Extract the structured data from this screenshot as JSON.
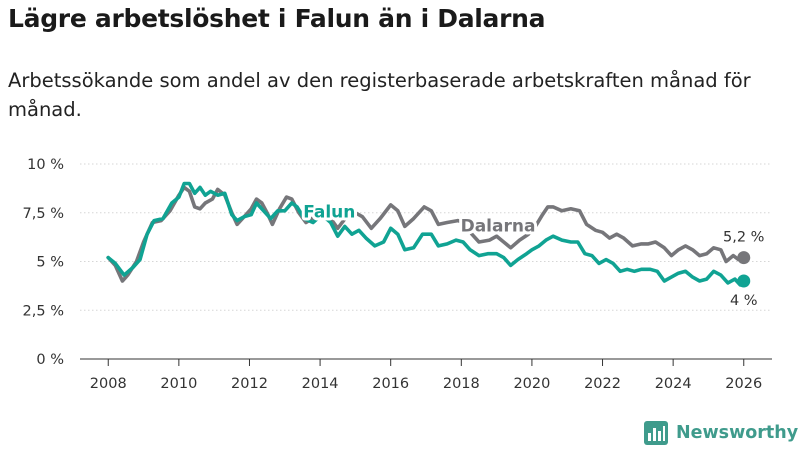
{
  "header": {
    "title": "Lägre arbetslöshet i Falun än i Dalarna",
    "subtitle": "Arbetssökande som andel av den registerbaserade arbetskraften månad för månad."
  },
  "brand": {
    "name": "Newsworthy",
    "icon": "bar-chart-logo-icon",
    "color": "#3f9b8c"
  },
  "chart_data": {
    "type": "line",
    "xlim": [
      2007.2,
      2026.8
    ],
    "ylim": [
      0,
      10
    ],
    "x_ticks": [
      {
        "value": 2008,
        "label": "2008"
      },
      {
        "value": 2010,
        "label": "2010"
      },
      {
        "value": 2012,
        "label": "2012"
      },
      {
        "value": 2014,
        "label": "2014"
      },
      {
        "value": 2016,
        "label": "2016"
      },
      {
        "value": 2018,
        "label": "2018"
      },
      {
        "value": 2020,
        "label": "2020"
      },
      {
        "value": 2022,
        "label": "2022"
      },
      {
        "value": 2024,
        "label": "2024"
      },
      {
        "value": 2026,
        "label": "2026"
      }
    ],
    "y_ticks": [
      {
        "value": 0,
        "label": "0 %"
      },
      {
        "value": 2.5,
        "label": "2,5 %"
      },
      {
        "value": 5,
        "label": "5 %"
      },
      {
        "value": 7.5,
        "label": "7,5 %"
      },
      {
        "value": 10,
        "label": "10 %"
      }
    ],
    "grid": "horizontal",
    "series": [
      {
        "name": "Dalarna",
        "color": "#76767a",
        "end_label": "5,2 %",
        "points": [
          [
            2008.0,
            5.2
          ],
          [
            2008.2,
            4.8
          ],
          [
            2008.4,
            4.0
          ],
          [
            2008.55,
            4.3
          ],
          [
            2008.8,
            5.0
          ],
          [
            2009.0,
            6.0
          ],
          [
            2009.25,
            7.0
          ],
          [
            2009.5,
            7.1
          ],
          [
            2009.75,
            7.6
          ],
          [
            2010.0,
            8.4
          ],
          [
            2010.15,
            8.8
          ],
          [
            2010.3,
            8.6
          ],
          [
            2010.45,
            7.8
          ],
          [
            2010.6,
            7.7
          ],
          [
            2010.75,
            8.0
          ],
          [
            2010.95,
            8.2
          ],
          [
            2011.1,
            8.7
          ],
          [
            2011.3,
            8.4
          ],
          [
            2011.5,
            7.5
          ],
          [
            2011.65,
            6.9
          ],
          [
            2011.85,
            7.3
          ],
          [
            2012.05,
            7.7
          ],
          [
            2012.2,
            8.2
          ],
          [
            2012.35,
            8.0
          ],
          [
            2012.5,
            7.5
          ],
          [
            2012.65,
            6.9
          ],
          [
            2012.85,
            7.7
          ],
          [
            2013.05,
            8.3
          ],
          [
            2013.2,
            8.2
          ],
          [
            2013.4,
            7.5
          ],
          [
            2013.6,
            7.0
          ],
          [
            2013.85,
            7.3
          ],
          [
            2014.1,
            7.7
          ],
          [
            2014.3,
            7.2
          ],
          [
            2014.5,
            6.7
          ],
          [
            2014.75,
            7.3
          ],
          [
            2015.0,
            7.5
          ],
          [
            2015.2,
            7.3
          ],
          [
            2015.45,
            6.7
          ],
          [
            2015.7,
            7.2
          ],
          [
            2016.0,
            7.9
          ],
          [
            2016.2,
            7.6
          ],
          [
            2016.4,
            6.8
          ],
          [
            2016.65,
            7.2
          ],
          [
            2016.95,
            7.8
          ],
          [
            2017.15,
            7.6
          ],
          [
            2017.35,
            6.9
          ],
          [
            2017.6,
            7.0
          ],
          [
            2017.9,
            7.1
          ],
          [
            2018.1,
            7.0
          ],
          [
            2018.3,
            6.4
          ],
          [
            2018.5,
            6.0
          ],
          [
            2018.8,
            6.1
          ],
          [
            2019.0,
            6.3
          ],
          [
            2019.2,
            6.0
          ],
          [
            2019.4,
            5.7
          ],
          [
            2019.65,
            6.1
          ],
          [
            2019.9,
            6.4
          ],
          [
            2020.1,
            6.8
          ],
          [
            2020.3,
            7.4
          ],
          [
            2020.45,
            7.8
          ],
          [
            2020.6,
            7.8
          ],
          [
            2020.85,
            7.6
          ],
          [
            2021.1,
            7.7
          ],
          [
            2021.35,
            7.6
          ],
          [
            2021.55,
            6.9
          ],
          [
            2021.8,
            6.6
          ],
          [
            2022.0,
            6.5
          ],
          [
            2022.2,
            6.2
          ],
          [
            2022.4,
            6.4
          ],
          [
            2022.6,
            6.2
          ],
          [
            2022.85,
            5.8
          ],
          [
            2023.1,
            5.9
          ],
          [
            2023.3,
            5.9
          ],
          [
            2023.5,
            6.0
          ],
          [
            2023.75,
            5.7
          ],
          [
            2023.95,
            5.3
          ],
          [
            2024.15,
            5.6
          ],
          [
            2024.35,
            5.8
          ],
          [
            2024.55,
            5.6
          ],
          [
            2024.75,
            5.3
          ],
          [
            2024.95,
            5.4
          ],
          [
            2025.15,
            5.7
          ],
          [
            2025.35,
            5.6
          ],
          [
            2025.5,
            5.0
          ],
          [
            2025.7,
            5.3
          ],
          [
            2025.85,
            5.1
          ],
          [
            2026.0,
            5.2
          ]
        ]
      },
      {
        "name": "Falun",
        "color": "#10a393",
        "end_label": "4 %",
        "points": [
          [
            2008.0,
            5.2
          ],
          [
            2008.2,
            4.9
          ],
          [
            2008.45,
            4.3
          ],
          [
            2008.7,
            4.7
          ],
          [
            2008.9,
            5.1
          ],
          [
            2009.1,
            6.4
          ],
          [
            2009.3,
            7.1
          ],
          [
            2009.55,
            7.2
          ],
          [
            2009.8,
            8.0
          ],
          [
            2010.0,
            8.3
          ],
          [
            2010.15,
            9.0
          ],
          [
            2010.3,
            9.0
          ],
          [
            2010.45,
            8.5
          ],
          [
            2010.6,
            8.8
          ],
          [
            2010.75,
            8.4
          ],
          [
            2010.9,
            8.6
          ],
          [
            2011.1,
            8.4
          ],
          [
            2011.3,
            8.5
          ],
          [
            2011.5,
            7.4
          ],
          [
            2011.65,
            7.1
          ],
          [
            2011.85,
            7.3
          ],
          [
            2012.05,
            7.4
          ],
          [
            2012.2,
            8.0
          ],
          [
            2012.4,
            7.6
          ],
          [
            2012.6,
            7.2
          ],
          [
            2012.8,
            7.6
          ],
          [
            2013.0,
            7.6
          ],
          [
            2013.2,
            8.0
          ],
          [
            2013.35,
            7.8
          ],
          [
            2013.55,
            7.2
          ],
          [
            2013.8,
            7.0
          ],
          [
            2014.05,
            7.4
          ],
          [
            2014.3,
            7.0
          ],
          [
            2014.5,
            6.3
          ],
          [
            2014.7,
            6.8
          ],
          [
            2014.9,
            6.4
          ],
          [
            2015.1,
            6.6
          ],
          [
            2015.3,
            6.2
          ],
          [
            2015.55,
            5.8
          ],
          [
            2015.8,
            6.0
          ],
          [
            2016.0,
            6.7
          ],
          [
            2016.2,
            6.4
          ],
          [
            2016.4,
            5.6
          ],
          [
            2016.65,
            5.7
          ],
          [
            2016.9,
            6.4
          ],
          [
            2017.15,
            6.4
          ],
          [
            2017.35,
            5.8
          ],
          [
            2017.6,
            5.9
          ],
          [
            2017.85,
            6.1
          ],
          [
            2018.05,
            6.0
          ],
          [
            2018.25,
            5.6
          ],
          [
            2018.5,
            5.3
          ],
          [
            2018.75,
            5.4
          ],
          [
            2019.0,
            5.4
          ],
          [
            2019.2,
            5.2
          ],
          [
            2019.4,
            4.8
          ],
          [
            2019.6,
            5.1
          ],
          [
            2019.85,
            5.4
          ],
          [
            2020.0,
            5.6
          ],
          [
            2020.2,
            5.8
          ],
          [
            2020.4,
            6.1
          ],
          [
            2020.6,
            6.3
          ],
          [
            2020.85,
            6.1
          ],
          [
            2021.1,
            6.0
          ],
          [
            2021.3,
            6.0
          ],
          [
            2021.5,
            5.4
          ],
          [
            2021.7,
            5.3
          ],
          [
            2021.9,
            4.9
          ],
          [
            2022.1,
            5.1
          ],
          [
            2022.3,
            4.9
          ],
          [
            2022.5,
            4.5
          ],
          [
            2022.7,
            4.6
          ],
          [
            2022.9,
            4.5
          ],
          [
            2023.1,
            4.6
          ],
          [
            2023.35,
            4.6
          ],
          [
            2023.55,
            4.5
          ],
          [
            2023.75,
            4.0
          ],
          [
            2023.95,
            4.2
          ],
          [
            2024.15,
            4.4
          ],
          [
            2024.35,
            4.5
          ],
          [
            2024.55,
            4.2
          ],
          [
            2024.75,
            4.0
          ],
          [
            2024.95,
            4.1
          ],
          [
            2025.15,
            4.5
          ],
          [
            2025.35,
            4.3
          ],
          [
            2025.55,
            3.9
          ],
          [
            2025.75,
            4.1
          ],
          [
            2025.9,
            3.8
          ],
          [
            2026.0,
            4.0
          ]
        ]
      }
    ]
  }
}
